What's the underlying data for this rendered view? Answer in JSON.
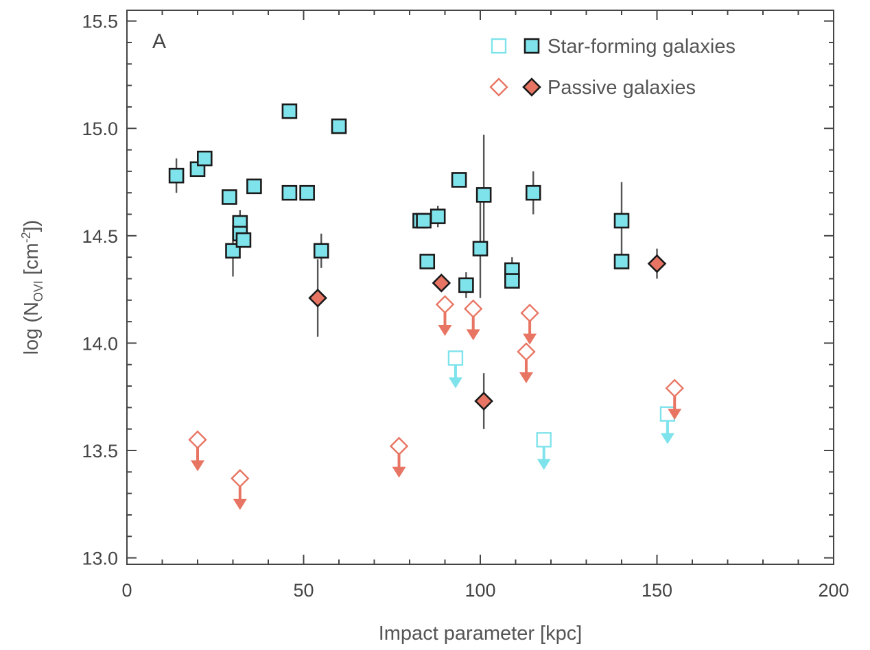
{
  "chart_data": {
    "type": "scatter",
    "panel_label": "A",
    "xlabel": "Impact parameter [kpc]",
    "ylabel": {
      "prefix": "log (N",
      "sub": "OVI",
      "mid": " [cm",
      "sup": "-2",
      "suffix": "])"
    },
    "xlim": [
      0,
      200
    ],
    "ylim": [
      12.97,
      15.55
    ],
    "xticks": [
      0,
      50,
      100,
      150,
      200
    ],
    "xtick_labels": [
      "0",
      "50",
      "100",
      "150",
      "200"
    ],
    "yticks": [
      13.0,
      13.5,
      14.0,
      14.5,
      15.0,
      15.5
    ],
    "ytick_labels": [
      "13.0",
      "13.5",
      "14.0",
      "14.5",
      "15.0",
      "15.5"
    ],
    "grid": false,
    "legend_position": "top-right",
    "colors": {
      "star_forming": "#7fe3ec",
      "passive": "#e87563",
      "error_bar": "#555555",
      "axis": "#444444"
    },
    "series": [
      {
        "name": "Star-forming galaxies",
        "kind": "detection",
        "marker": "square-filled",
        "points": [
          {
            "x": 14,
            "y": 14.78,
            "err": 0.08
          },
          {
            "x": 20,
            "y": 14.81
          },
          {
            "x": 22,
            "y": 14.86
          },
          {
            "x": 29,
            "y": 14.68
          },
          {
            "x": 30,
            "y": 14.43,
            "err": 0.12
          },
          {
            "x": 32,
            "y": 14.56,
            "err": 0.06
          },
          {
            "x": 32,
            "y": 14.51
          },
          {
            "x": 33,
            "y": 14.48
          },
          {
            "x": 36,
            "y": 14.73
          },
          {
            "x": 46,
            "y": 14.7
          },
          {
            "x": 46,
            "y": 15.08
          },
          {
            "x": 51,
            "y": 14.7
          },
          {
            "x": 55,
            "y": 14.43,
            "err": 0.08
          },
          {
            "x": 60,
            "y": 15.01
          },
          {
            "x": 83,
            "y": 14.57
          },
          {
            "x": 84,
            "y": 14.57
          },
          {
            "x": 85,
            "y": 14.38
          },
          {
            "x": 88,
            "y": 14.59,
            "err": 0.05
          },
          {
            "x": 94,
            "y": 14.76
          },
          {
            "x": 96,
            "y": 14.27,
            "err": 0.06
          },
          {
            "x": 100,
            "y": 14.44,
            "err": 0.23
          },
          {
            "x": 101,
            "y": 14.69,
            "err": 0.28
          },
          {
            "x": 109,
            "y": 14.34,
            "err": 0.06
          },
          {
            "x": 109,
            "y": 14.29
          },
          {
            "x": 115,
            "y": 14.7,
            "err": 0.1
          },
          {
            "x": 140,
            "y": 14.57,
            "err": 0.18
          },
          {
            "x": 140,
            "y": 14.38
          }
        ]
      },
      {
        "name": "Star-forming galaxies",
        "kind": "upper_limit",
        "marker": "square-open",
        "points": [
          {
            "x": 93,
            "y": 13.93
          },
          {
            "x": 118,
            "y": 13.55
          },
          {
            "x": 153,
            "y": 13.67
          }
        ]
      },
      {
        "name": "Passive galaxies",
        "kind": "detection",
        "marker": "diamond-filled",
        "points": [
          {
            "x": 54,
            "y": 14.21,
            "err": 0.18
          },
          {
            "x": 89,
            "y": 14.28
          },
          {
            "x": 101,
            "y": 13.73,
            "err": 0.13
          },
          {
            "x": 150,
            "y": 14.37,
            "err": 0.07
          }
        ]
      },
      {
        "name": "Passive galaxies",
        "kind": "upper_limit",
        "marker": "diamond-open",
        "points": [
          {
            "x": 20,
            "y": 13.55
          },
          {
            "x": 32,
            "y": 13.37
          },
          {
            "x": 77,
            "y": 13.52
          },
          {
            "x": 90,
            "y": 14.18
          },
          {
            "x": 98,
            "y": 14.16
          },
          {
            "x": 113,
            "y": 13.96
          },
          {
            "x": 114,
            "y": 14.14
          },
          {
            "x": 155,
            "y": 13.79
          }
        ]
      }
    ],
    "legend": [
      {
        "label": "Star-forming galaxies",
        "markers": [
          "square-open",
          "square-filled"
        ],
        "color": "star_forming"
      },
      {
        "label": "Passive galaxies",
        "markers": [
          "diamond-open",
          "diamond-filled"
        ],
        "color": "passive"
      }
    ]
  }
}
